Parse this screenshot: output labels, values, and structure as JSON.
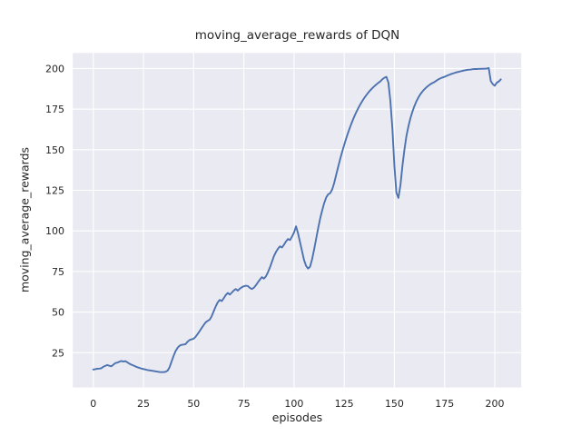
{
  "style": {
    "figure_bg": "#ffffff",
    "axes_bg": "#eaeaf2",
    "grid_color": "#ffffff",
    "line_color": "#4c72b0",
    "text_color": "#262626"
  },
  "chart_data": {
    "type": "line",
    "title": "moving_average_rewards of DQN",
    "xlabel": "episodes",
    "ylabel": "moving_average_rewards",
    "grid": true,
    "legend": "none",
    "xticks": [
      0,
      25,
      50,
      75,
      100,
      125,
      150,
      175,
      200
    ],
    "yticks": [
      25,
      50,
      75,
      100,
      125,
      150,
      175,
      200
    ],
    "xlim": [
      -10.2,
      213.2
    ],
    "ylim": [
      3.6,
      209.6
    ],
    "series_name": "moving_average_rewards",
    "x_start": 0,
    "x_step": 1,
    "y": [
      14.6,
      14.8,
      15.1,
      15.2,
      15.4,
      16.3,
      16.9,
      17.4,
      16.9,
      16.6,
      17.6,
      18.6,
      18.9,
      19.4,
      19.9,
      19.5,
      19.8,
      19.0,
      18.2,
      17.6,
      17.1,
      16.5,
      16.0,
      15.6,
      15.2,
      14.9,
      14.6,
      14.3,
      14.1,
      13.9,
      13.7,
      13.5,
      13.3,
      13.1,
      13.0,
      13.0,
      13.2,
      13.9,
      16.0,
      19.5,
      23.0,
      26.0,
      28.0,
      29.3,
      29.8,
      30.0,
      30.3,
      31.8,
      32.8,
      33.2,
      33.6,
      34.8,
      36.5,
      38.3,
      40.2,
      42.0,
      43.7,
      44.6,
      45.3,
      47.5,
      50.5,
      53.5,
      56.0,
      57.5,
      56.8,
      58.5,
      60.5,
      61.8,
      60.8,
      62.0,
      63.3,
      64.2,
      63.2,
      64.4,
      65.3,
      65.9,
      66.2,
      66.0,
      64.9,
      64.2,
      65.0,
      66.5,
      68.3,
      70.0,
      71.5,
      70.6,
      72.0,
      74.5,
      77.5,
      81.0,
      84.5,
      87.0,
      89.0,
      90.5,
      89.8,
      91.5,
      93.5,
      95.0,
      94.4,
      96.5,
      99.0,
      102.8,
      98.5,
      93.0,
      87.5,
      82.0,
      78.5,
      76.8,
      78.0,
      82.5,
      88.5,
      95.0,
      101.5,
      107.5,
      112.5,
      117.0,
      120.5,
      122.5,
      123.2,
      125.5,
      129.5,
      134.5,
      139.5,
      144.3,
      148.8,
      153.0,
      157.0,
      160.7,
      164.2,
      167.4,
      170.4,
      173.1,
      175.6,
      177.9,
      180.0,
      181.9,
      183.6,
      185.2,
      186.6,
      187.9,
      189.1,
      190.2,
      191.2,
      192.1,
      193.4,
      194.3,
      194.9,
      191.5,
      180.0,
      163.0,
      140.0,
      123.5,
      120.3,
      128.0,
      140.0,
      150.0,
      158.5,
      164.5,
      169.5,
      173.5,
      177.0,
      179.9,
      182.3,
      184.3,
      185.9,
      187.3,
      188.5,
      189.5,
      190.4,
      191.1,
      191.7,
      192.6,
      193.4,
      194.0,
      194.5,
      194.9,
      195.5,
      196.0,
      196.5,
      196.9,
      197.3,
      197.7,
      198.0,
      198.3,
      198.6,
      198.9,
      199.1,
      199.3,
      199.4,
      199.6,
      199.7,
      199.7,
      199.8,
      199.8,
      199.9,
      199.9,
      200.0,
      200.3,
      192.3,
      190.4,
      189.4,
      191.3,
      192.0,
      193.3
    ]
  }
}
